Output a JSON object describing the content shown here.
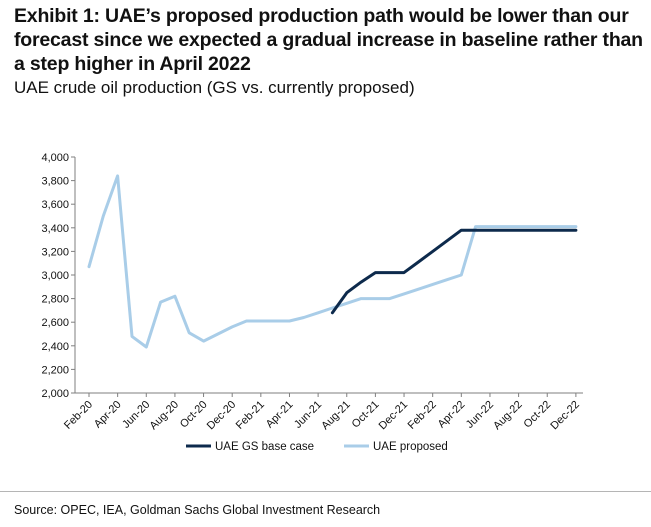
{
  "title": "Exhibit 1: UAE’s proposed production path would be lower than our forecast since we expected a gradual increase in baseline rather than a step higher in April 2022",
  "subtitle": "UAE crude oil production (GS vs. currently proposed)",
  "source": "Source: OPEC, IEA, Goldman Sachs Global Investment Research",
  "chart_data": {
    "type": "line",
    "x": [
      "Feb-20",
      "Mar-20",
      "Apr-20",
      "May-20",
      "Jun-20",
      "Jul-20",
      "Aug-20",
      "Sep-20",
      "Oct-20",
      "Nov-20",
      "Dec-20",
      "Jan-21",
      "Feb-21",
      "Mar-21",
      "Apr-21",
      "May-21",
      "Jun-21",
      "Jul-21",
      "Aug-21",
      "Sep-21",
      "Oct-21",
      "Nov-21",
      "Dec-21",
      "Jan-22",
      "Feb-22",
      "Mar-22",
      "Apr-22",
      "May-22",
      "Jun-22",
      "Jul-22",
      "Aug-22",
      "Sep-22",
      "Oct-22",
      "Nov-22",
      "Dec-22"
    ],
    "x_tick_labels": [
      "Feb-20",
      "Apr-20",
      "Jun-20",
      "Aug-20",
      "Oct-20",
      "Dec-20",
      "Feb-21",
      "Apr-21",
      "Jun-21",
      "Aug-21",
      "Oct-21",
      "Dec-21",
      "Feb-22",
      "Apr-22",
      "Jun-22",
      "Aug-22",
      "Oct-22",
      "Dec-22"
    ],
    "series": [
      {
        "name": "UAE GS base case",
        "color": "#0d2a4c",
        "values": [
          null,
          null,
          null,
          null,
          null,
          null,
          null,
          null,
          null,
          null,
          null,
          null,
          null,
          null,
          null,
          null,
          null,
          2680,
          2850,
          2940,
          3020,
          3020,
          3020,
          3110,
          3200,
          3290,
          3380,
          3380,
          3380,
          3380,
          3380,
          3380,
          3380,
          3380,
          3380
        ]
      },
      {
        "name": "UAE proposed",
        "color": "#a9cde8",
        "values": [
          3070,
          3500,
          3840,
          2480,
          2390,
          2770,
          2820,
          2510,
          2440,
          2500,
          2560,
          2610,
          2610,
          2610,
          2610,
          2640,
          2680,
          2720,
          2760,
          2800,
          2800,
          2800,
          2840,
          2880,
          2920,
          2960,
          3000,
          3410,
          3410,
          3410,
          3410,
          3410,
          3410,
          3410,
          3410
        ]
      }
    ],
    "y_tick_labels": [
      "2,000",
      "2,200",
      "2,400",
      "2,600",
      "2,800",
      "3,000",
      "3,200",
      "3,400",
      "3,600",
      "3,800",
      "4,000"
    ],
    "ylim": [
      2000,
      4000
    ],
    "grid": false,
    "legend": "bottom"
  }
}
